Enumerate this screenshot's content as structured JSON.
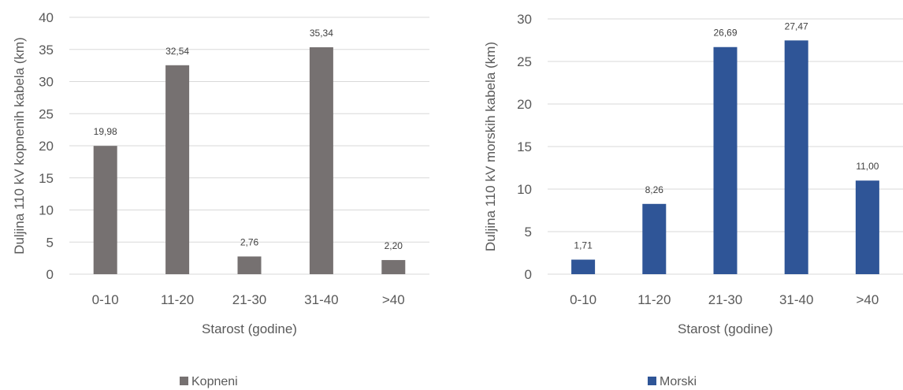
{
  "chart_data": [
    {
      "type": "bar",
      "categories": [
        "0-10",
        "11-20",
        "21-30",
        "31-40",
        ">40"
      ],
      "series": [
        {
          "name": "Kopneni",
          "values": [
            19.98,
            32.54,
            2.76,
            35.34,
            2.2
          ],
          "data_labels": [
            "19,98",
            "32,54",
            "2,76",
            "35,34",
            "2,20"
          ],
          "color": "#767171"
        }
      ],
      "xlabel": "Starost (godine)",
      "ylabel": "Duljina 110 kV kopnenih kabela (km)",
      "ylim": [
        0,
        40
      ],
      "yticks": [
        0,
        5,
        10,
        15,
        20,
        25,
        30,
        35,
        40
      ],
      "grid": true,
      "legend_position": "bottom"
    },
    {
      "type": "bar",
      "categories": [
        "0-10",
        "11-20",
        "21-30",
        "31-40",
        ">40"
      ],
      "series": [
        {
          "name": "Morski",
          "values": [
            1.71,
            8.26,
            26.69,
            27.47,
            11.0
          ],
          "data_labels": [
            "1,71",
            "8,26",
            "26,69",
            "27,47",
            "11,00"
          ],
          "color": "#2F5597"
        }
      ],
      "xlabel": "Starost (godine)",
      "ylabel": "Duljina 110 kV morskih kabela (km)",
      "ylim": [
        0,
        30
      ],
      "yticks": [
        0,
        5,
        10,
        15,
        20,
        25,
        30
      ],
      "grid": true,
      "legend_position": "bottom"
    }
  ]
}
